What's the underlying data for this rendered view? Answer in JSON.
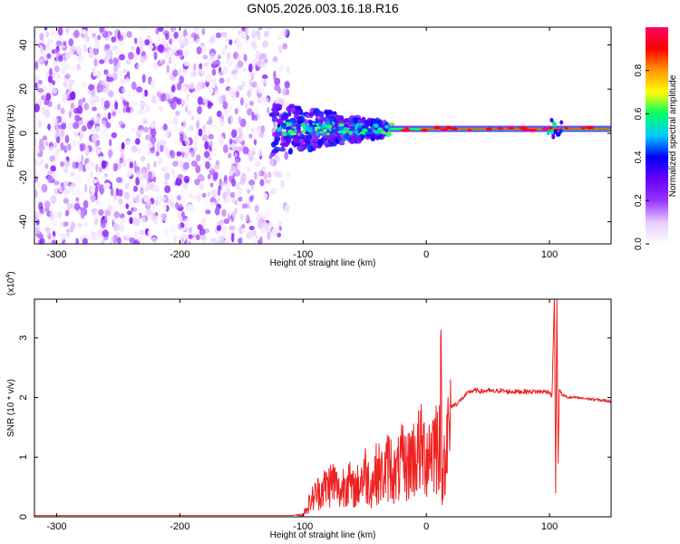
{
  "title": "GN05.2026.003.16.18.R16",
  "chart_data": [
    {
      "type": "heatmap",
      "xlabel": "Height of straight line (km)",
      "ylabel": "Frequency (Hz)",
      "xlim": [
        -318,
        150
      ],
      "ylim": [
        -50,
        48
      ],
      "x_ticks": [
        -300,
        -200,
        -100,
        0,
        100
      ],
      "y_ticks": [
        -40,
        -20,
        0,
        20,
        40
      ],
      "colorbar": {
        "label": "Normalized spectral amplitude",
        "range": [
          0,
          1
        ],
        "ticks": [
          0.0,
          0.2,
          0.4,
          0.6,
          0.8
        ],
        "tick_labels": [
          "0.0",
          "0.2",
          "0.4",
          "0.6",
          "0.8"
        ],
        "colors": [
          "#ffffff",
          "#e6ccff",
          "#9933ff",
          "#6600ff",
          "#0000ff",
          "#00ccff",
          "#00ff66",
          "#ffff00",
          "#ff9900",
          "#ff0000",
          "#ff0066"
        ]
      },
      "regions": [
        {
          "name": "noise",
          "x_range": [
            -318,
            -112
          ],
          "freq_range": [
            -50,
            48
          ],
          "amplitude": [
            0.02,
            0.25
          ]
        },
        {
          "name": "onset",
          "x_range": [
            -125,
            -30
          ],
          "center_freq": 2,
          "amplitude": [
            0.2,
            0.45
          ]
        },
        {
          "name": "signal",
          "x_range": [
            -30,
            150
          ],
          "center_freq": 2,
          "amplitude": [
            0.5,
            1.0
          ]
        }
      ]
    },
    {
      "type": "line",
      "xlabel": "Height of straight line (km)",
      "ylabel": "SNR (10 * v/v)",
      "multiplier": "(x10^4)",
      "multiplier_base": "(x10",
      "multiplier_exp": "4",
      "multiplier_close": ")",
      "xlim": [
        -318,
        150
      ],
      "ylim": [
        0,
        3.65
      ],
      "x_ticks": [
        -300,
        -200,
        -100,
        0,
        100
      ],
      "y_ticks": [
        0,
        1,
        2,
        3
      ],
      "series": [
        {
          "name": "SNR",
          "color": "#ee2222",
          "x": [
            -318,
            -200,
            -110,
            -100,
            -95,
            -90,
            -85,
            -80,
            -75,
            -70,
            -65,
            -60,
            -55,
            -50,
            -45,
            -40,
            -35,
            -30,
            -25,
            -20,
            -15,
            -12,
            -10,
            -5,
            0,
            5,
            10,
            12,
            13,
            15,
            20,
            25,
            30,
            35,
            40,
            45,
            50,
            55,
            60,
            65,
            70,
            75,
            80,
            85,
            90,
            95,
            100,
            102,
            104,
            105,
            106,
            107,
            108,
            110,
            115,
            120,
            130,
            140,
            150
          ],
          "y": [
            0.02,
            0.02,
            0.02,
            0.05,
            0.3,
            0.5,
            0.6,
            0.7,
            0.8,
            0.5,
            0.9,
            0.6,
            0.7,
            1.0,
            0.7,
            1.0,
            0.9,
            1.2,
            0.9,
            1.2,
            1.1,
            1.4,
            1.3,
            1.5,
            1.4,
            1.6,
            1.7,
            2.6,
            0.5,
            1.7,
            1.85,
            1.9,
            2.0,
            2.1,
            2.12,
            2.1,
            2.12,
            2.1,
            2.12,
            2.1,
            2.1,
            2.1,
            2.1,
            2.1,
            2.1,
            2.1,
            2.1,
            2.0,
            3.7,
            0.4,
            3.7,
            0.9,
            2.15,
            2.05,
            2.0,
            2.0,
            1.98,
            1.96,
            1.94
          ]
        }
      ]
    }
  ]
}
